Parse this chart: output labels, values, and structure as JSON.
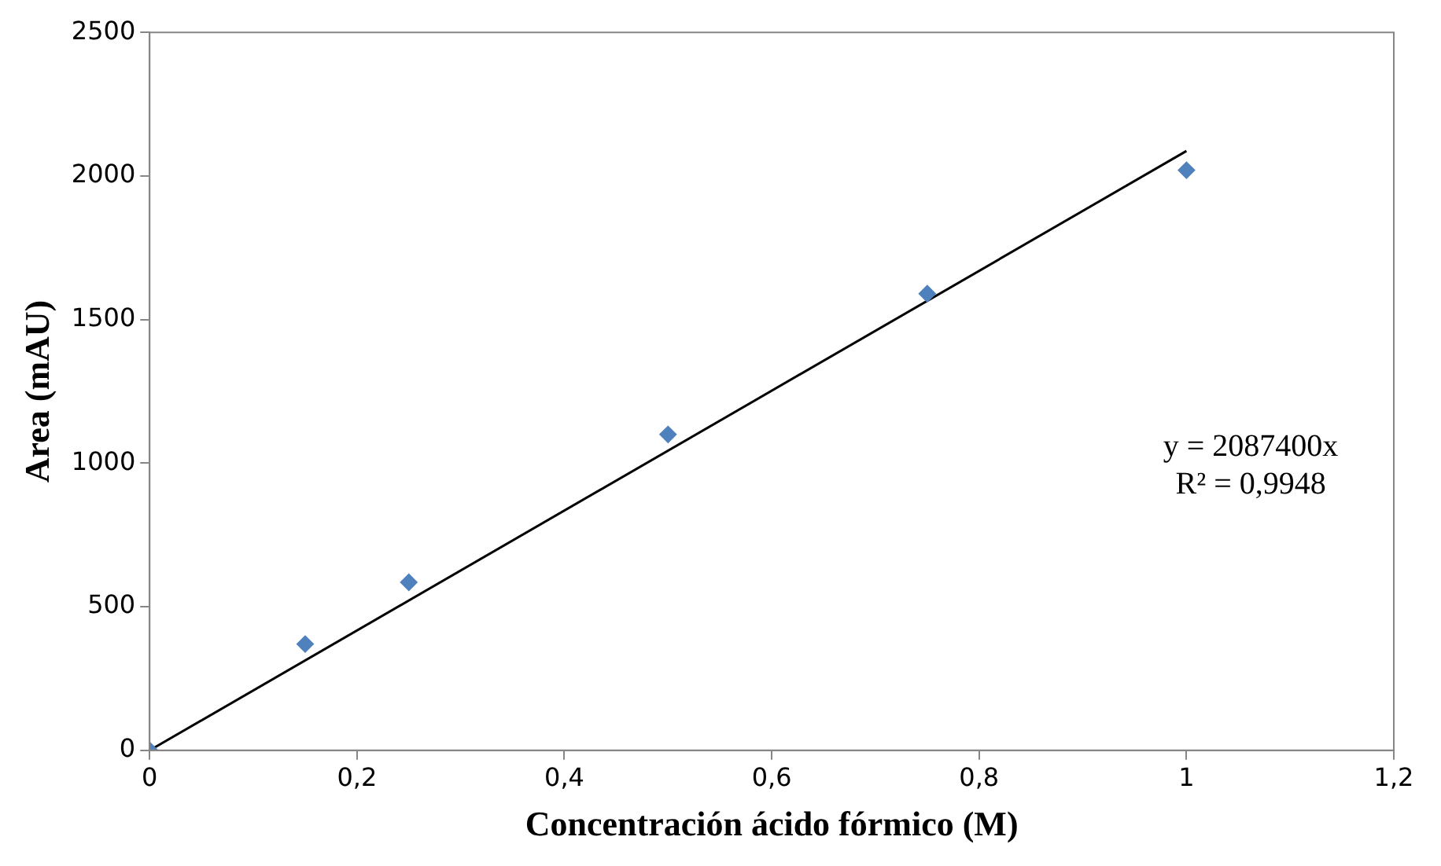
{
  "chart_data": {
    "type": "scatter",
    "xlabel": "Concentración ácido fórmico (M)",
    "ylabel": "Area (mAU)",
    "x": [
      0,
      0.15,
      0.25,
      0.5,
      0.75,
      1
    ],
    "series": [
      {
        "type": "scatter",
        "color": "#4f81bd",
        "values": [
          0,
          370,
          585,
          1100,
          1590,
          2020
        ],
        "marker": "diamond"
      },
      {
        "type": "line",
        "color": "#000000",
        "x": [
          0,
          1
        ],
        "values": [
          0,
          2087
        ],
        "marker": "none"
      }
    ],
    "xlim": [
      0,
      1.2
    ],
    "xticks": [
      0,
      {
        "value": 0.2,
        "label": "0,2"
      },
      {
        "value": 0.4,
        "label": "0,4"
      },
      {
        "value": 0.6,
        "label": "0,6"
      },
      {
        "value": 0.8,
        "label": "0,8"
      },
      1,
      {
        "value": 1.2,
        "label": "1,2"
      }
    ],
    "ylim": [
      0,
      2500
    ],
    "yticks": [
      0,
      500,
      1000,
      1500,
      2000,
      2500
    ],
    "annotations": [
      "y = 2087400x",
      "R² = 0,9948"
    ],
    "grid": false,
    "legend": false
  }
}
